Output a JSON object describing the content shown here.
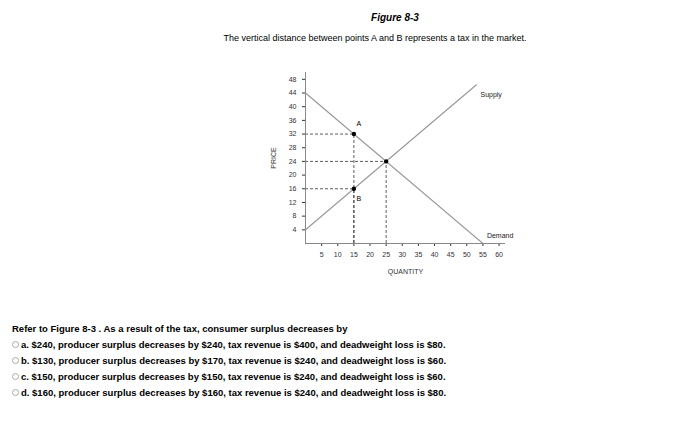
{
  "chart_data": {
    "type": "line",
    "title": "Figure 8-3",
    "subtitle": "The vertical distance between points A and B represents a tax in the market.",
    "x_label": "QUANTITY",
    "y_label": "PRICE",
    "series": [
      {
        "name": "Supply",
        "x": [
          0,
          53
        ],
        "values": [
          4,
          46.4
        ],
        "color": "#9a9a9a"
      },
      {
        "name": "Demand",
        "x": [
          0,
          55
        ],
        "values": [
          44,
          0
        ],
        "color": "#9a9a9a"
      }
    ],
    "points": [
      {
        "label": "A",
        "x": 15,
        "y": 32
      },
      {
        "label": "B",
        "x": 15,
        "y": 16
      }
    ],
    "equilibrium": {
      "x": 25,
      "y": 24
    },
    "xlim": [
      0,
      62
    ],
    "ylim": [
      0,
      50
    ],
    "xticks": [
      5,
      10,
      15,
      20,
      25,
      30,
      35,
      40,
      45,
      50,
      55,
      60
    ],
    "yticks": [
      4,
      8,
      12,
      16,
      20,
      24,
      28,
      32,
      36,
      40,
      44,
      48
    ],
    "grid": false
  },
  "question": "Refer to Figure 8-3 . As a result of the tax, consumer surplus decreases by",
  "options": [
    "a. $240, producer surplus decreases by $240, tax revenue is $400, and deadweight loss is $80.",
    "b. $130, producer surplus decreases by $170, tax revenue is $240, and deadweight loss is $60.",
    "c. $150, producer surplus decreases by $150, tax revenue is $240, and deadweight loss is $60.",
    "d. $160, producer surplus decreases by $160, tax revenue is $240, and deadweight loss is $80."
  ]
}
